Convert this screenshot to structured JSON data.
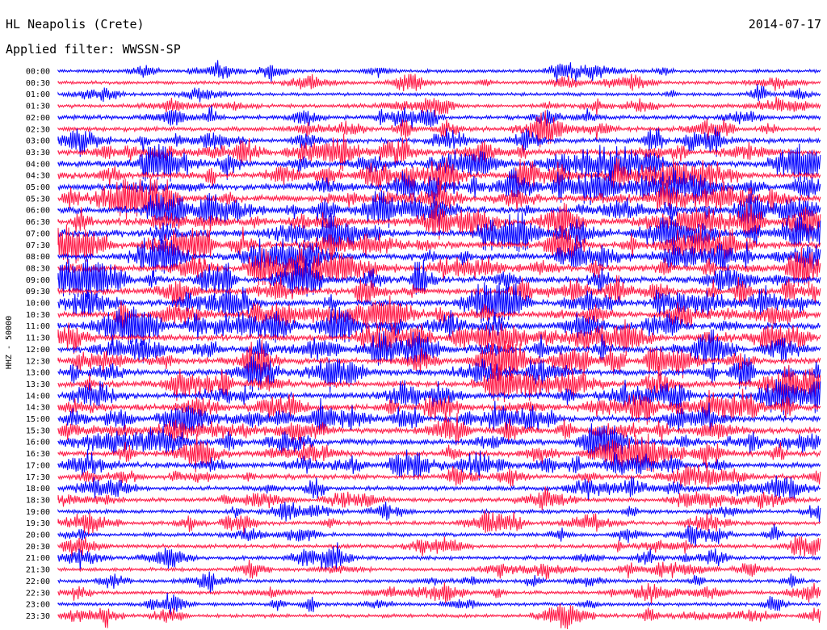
{
  "header": {
    "station": "HL Neapolis (Crete)",
    "date": "2014-07-17",
    "filter_label": "Applied filter: WWSSN-SP"
  },
  "chart_data": {
    "type": "line",
    "title": "HL Neapolis (Crete)",
    "ylabel": "HHZ - 50000",
    "xlabel": "",
    "grid": false,
    "legend": "none",
    "series_colors": [
      "#0000ff",
      "#ff1744"
    ],
    "trace_labels": [
      "00:00",
      "00:30",
      "01:00",
      "01:30",
      "02:00",
      "02:30",
      "03:00",
      "03:30",
      "04:00",
      "04:30",
      "05:00",
      "05:30",
      "06:00",
      "06:30",
      "07:00",
      "07:30",
      "08:00",
      "08:30",
      "09:00",
      "09:30",
      "10:00",
      "10:30",
      "11:00",
      "11:30",
      "12:00",
      "12:30",
      "13:00",
      "13:30",
      "14:00",
      "14:30",
      "15:00",
      "15:30",
      "16:00",
      "16:30",
      "17:00",
      "17:30",
      "18:00",
      "18:30",
      "19:00",
      "19:30",
      "20:00",
      "20:30",
      "21:00",
      "21:30",
      "22:00",
      "22:30",
      "23:00",
      "23:30"
    ],
    "activity_level": [
      0.25,
      0.25,
      0.25,
      0.35,
      0.4,
      0.45,
      0.55,
      0.7,
      0.8,
      0.8,
      0.85,
      0.9,
      0.95,
      0.95,
      0.95,
      0.9,
      0.9,
      0.85,
      0.85,
      0.8,
      0.8,
      0.8,
      0.8,
      0.8,
      0.8,
      0.8,
      0.8,
      0.75,
      0.75,
      0.75,
      0.75,
      0.7,
      0.7,
      0.65,
      0.6,
      0.5,
      0.45,
      0.4,
      0.35,
      0.35,
      0.35,
      0.35,
      0.35,
      0.3,
      0.3,
      0.3,
      0.3,
      0.3
    ]
  }
}
